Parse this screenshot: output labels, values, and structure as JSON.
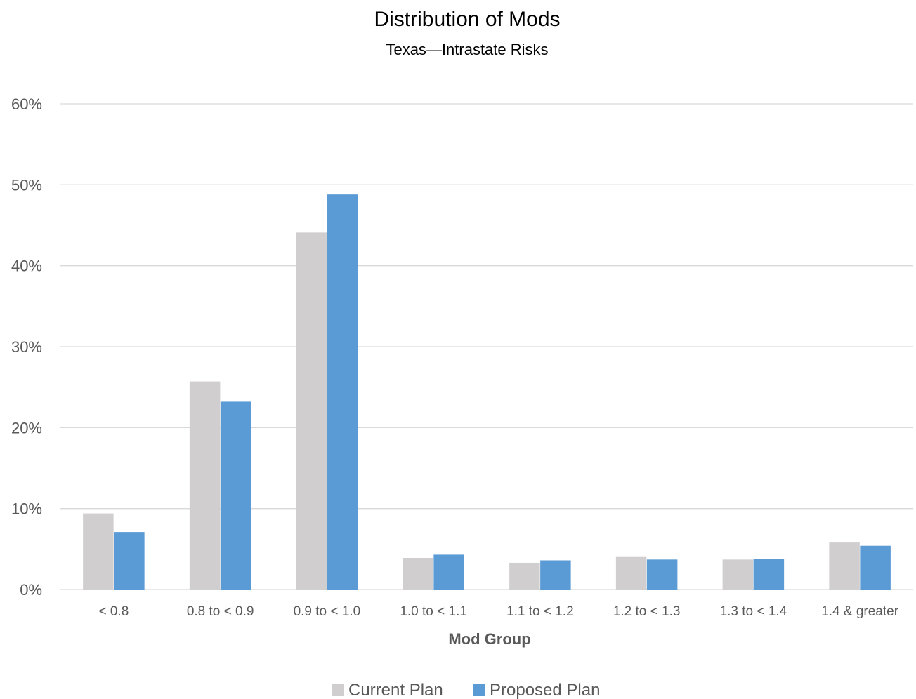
{
  "chart_data": {
    "type": "bar",
    "title": "Distribution of Mods",
    "subtitle": "Texas—Intrastate Risks",
    "xlabel": "Mod Group",
    "ylabel": "",
    "ylim": [
      0,
      0.6
    ],
    "yticks": [
      0,
      0.1,
      0.2,
      0.3,
      0.4,
      0.5,
      0.6
    ],
    "ytick_labels": [
      "0%",
      "10%",
      "20%",
      "30%",
      "40%",
      "50%",
      "60%"
    ],
    "grid": true,
    "legend_position": "bottom",
    "categories": [
      "< 0.8",
      "0.8 to < 0.9",
      "0.9 to < 1.0",
      "1.0 to < 1.1",
      "1.1 to < 1.2",
      "1.2 to < 1.3",
      "1.3 to < 1.4",
      "1.4 & greater"
    ],
    "series": [
      {
        "name": "Current Plan",
        "color": "#d0cece",
        "values": [
          0.094,
          0.257,
          0.441,
          0.039,
          0.033,
          0.041,
          0.037,
          0.058
        ]
      },
      {
        "name": "Proposed Plan",
        "color": "#5b9bd5",
        "values": [
          0.071,
          0.232,
          0.488,
          0.043,
          0.036,
          0.037,
          0.038,
          0.054
        ]
      }
    ]
  }
}
